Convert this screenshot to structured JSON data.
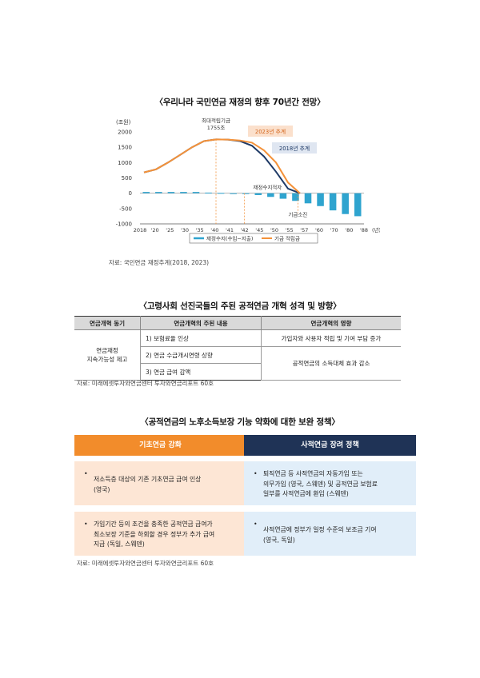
{
  "section1": {
    "title": "〈우리나라 국민연금 재정의 향후 70년간 전망〉",
    "source": "자료: 국민연금 재정추계(2018, 2023)"
  },
  "chart_data": {
    "type": "line",
    "unit_label": "(조원)",
    "x_unit": "(년)",
    "xticks": [
      "2018",
      "'20",
      "'25",
      "'30",
      "'35",
      "'40",
      "'41",
      "'42",
      "'45",
      "'50",
      "'55",
      "'57",
      "'60",
      "'70",
      "'80",
      "'88"
    ],
    "ylim": [
      -1000,
      2000
    ],
    "yticks": [
      "2000",
      "1500",
      "1000",
      "500",
      "0",
      "-500",
      "-1000"
    ],
    "series": [
      {
        "name": "재정수지(수입−지출)",
        "type": "bar",
        "values": [
          40,
          40,
          40,
          40,
          40,
          20,
          10,
          0,
          -20,
          -60,
          -120,
          -180,
          -250,
          -330,
          -420,
          -560,
          -680,
          -750
        ]
      },
      {
        "name": "기금 적립금",
        "label": "2023년 추계",
        "type": "line",
        "values": [
          680,
          780,
          1000,
          1250,
          1500,
          1700,
          1755,
          1750,
          1720,
          1650,
          1400,
          1000,
          350,
          0
        ]
      },
      {
        "label": "2018년 추계",
        "type": "line",
        "values": [
          680,
          780,
          1000,
          1250,
          1500,
          1700,
          1755,
          1750,
          1700,
          1550,
          1200,
          700,
          150,
          0
        ]
      }
    ],
    "annotations": [
      "최대적립기금",
      "1755조",
      "재정수지적자",
      "기금소진",
      "2023년 추계",
      "2018년 추계"
    ],
    "legend": [
      "재정수지(수입−지출)",
      "기금 적립금"
    ],
    "colors": {
      "bars": "#2fa4cf",
      "line2023": "#f4923a",
      "line2018": "#1f3a66",
      "label2023_bg": "#fbe0cc",
      "label2018_bg": "#dfe6f1"
    }
  },
  "section2": {
    "title": "〈고령사회 선진국들의 주된 공적연금 개혁 성격 및 방향〉",
    "headers": [
      "연금개혁 동기",
      "연금개혁의 주된 내용",
      "연금개혁의 영향"
    ],
    "motive": "연금재정\n지속가능성 제고",
    "contents": [
      "1) 보험료율 인상",
      "2) 연금 수급개시연령 상향",
      "3) 연금 급여 감액"
    ],
    "effects": [
      "가입자와 사용자 적립 및 기여 부담 증가",
      "공적연금의 소득대체 효과 감소"
    ],
    "source": "자료: 미래에셋투자와연금센터 투자와연금리포트 60호"
  },
  "section3": {
    "title": "〈공적연금의 노후소득보장 기능 약화에 대한 보완 정책〉",
    "left_head": "기초연금 강화",
    "right_head": "사적연금 장려 정책",
    "left_items": [
      "저소득층 대상의 기존 기초연금 급여 인상\n(영국)",
      "가입기간 등의 조건을 충족한 공적연금 급여가\n최소보장 기준을 하회할 경우 정부가 추가 급여\n지급 (독일, 스웨덴)"
    ],
    "right_items": [
      "퇴직연금 등 사적연금의 자동가입 또는\n의무가입 (영국, 스웨덴) 및 공적연금 보험료\n일부를 사적연금에 환입 (스웨덴)",
      "사적연금에 정부가 일정 수준의 보조금 기여\n(영국, 독일)"
    ],
    "bullet": "•",
    "source": "자료: 미래에셋투자와연금센터 투자와연금리포트 60호",
    "colors": {
      "left_head": "#f28c2b",
      "right_head": "#1f3356",
      "left_card": "#fde6d5",
      "right_card": "#e1eef9"
    }
  }
}
